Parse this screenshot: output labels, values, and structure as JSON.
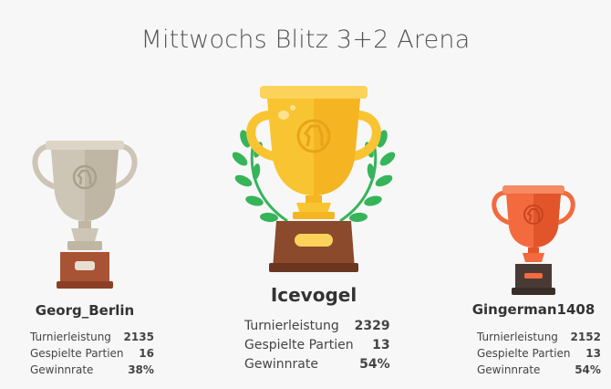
{
  "page": {
    "title": "Mittwochs Blitz 3+2 Arena"
  },
  "podium": [
    {
      "place": "first",
      "name": "Icevogel",
      "stats": [
        {
          "label": "Turnierleistung",
          "value": "2329"
        },
        {
          "label": "Gespielte Partien",
          "value": "13"
        },
        {
          "label": "Gewinnrate",
          "value": "54%"
        }
      ]
    },
    {
      "place": "second",
      "name": "Georg_Berlin",
      "stats": [
        {
          "label": "Turnierleistung",
          "value": "2135"
        },
        {
          "label": "Gespielte Partien",
          "value": "16"
        },
        {
          "label": "Gewinnrate",
          "value": "38%"
        }
      ]
    },
    {
      "place": "third",
      "name": "Gingerman1408",
      "stats": [
        {
          "label": "Turnierleistung",
          "value": "2152"
        },
        {
          "label": "Gespielte Partien",
          "value": "13"
        },
        {
          "label": "Gewinnrate",
          "value": "54%"
        }
      ]
    }
  ],
  "icons": {
    "first": "gold-trophy-icon",
    "second": "silver-trophy-icon",
    "third": "bronze-trophy-icon"
  },
  "colors": {
    "gold": "#f9c431",
    "silver": "#cdc5b5",
    "bronze": "#f26a3e",
    "laurel": "#36b45a"
  }
}
